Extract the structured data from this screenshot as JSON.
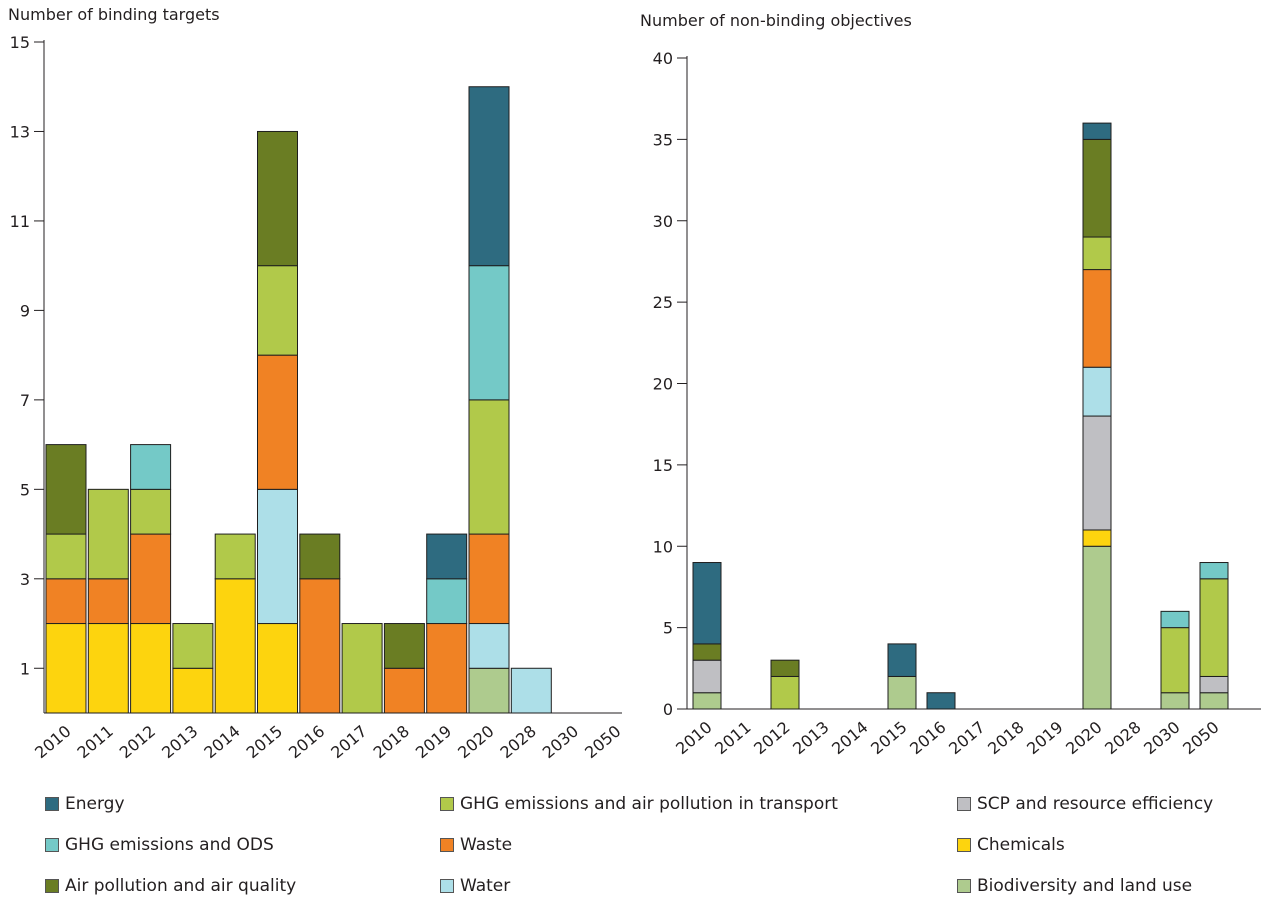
{
  "legend": [
    {
      "key": "energy",
      "label": "Energy"
    },
    {
      "key": "ghg_ods",
      "label": "GHG emissions and ODS"
    },
    {
      "key": "air",
      "label": "Air pollution and air quality"
    },
    {
      "key": "transport",
      "label": "GHG emissions and air pollution in transport"
    },
    {
      "key": "waste",
      "label": "Waste"
    },
    {
      "key": "water",
      "label": "Water"
    },
    {
      "key": "scp",
      "label": "SCP and resource efficiency"
    },
    {
      "key": "chemicals",
      "label": "Chemicals"
    },
    {
      "key": "biodiversity",
      "label": "Biodiversity and land use"
    }
  ],
  "colors": {
    "energy": "#2e6b80",
    "ghg_ods": "#74c9c7",
    "air": "#6a7d23",
    "transport": "#b1c94a",
    "waste": "#f08224",
    "water": "#addfe8",
    "scp": "#bfbfc3",
    "chemicals": "#fdd40e",
    "biodiversity": "#aecb8e"
  },
  "chart_data": [
    {
      "type": "bar",
      "stacked": true,
      "title": "Number of binding targets",
      "xlabel": "",
      "ylabel": "Number of binding targets",
      "categories": [
        "2010",
        "2011",
        "2012",
        "2013",
        "2014",
        "2015",
        "2016",
        "2017",
        "2018",
        "2019",
        "2020",
        "2028",
        "2030",
        "2050"
      ],
      "ylim": [
        0,
        15
      ],
      "yticks": [
        1,
        3,
        5,
        7,
        9,
        11,
        13,
        15
      ],
      "stack_order": [
        "biodiversity",
        "chemicals",
        "scp",
        "water",
        "waste",
        "transport",
        "ghg_ods",
        "air",
        "energy"
      ],
      "series": [
        {
          "key": "biodiversity",
          "name": "Biodiversity and land use",
          "values": [
            0,
            0,
            0,
            0,
            0,
            0,
            0,
            0,
            0,
            0,
            1,
            0,
            0,
            0
          ]
        },
        {
          "key": "chemicals",
          "name": "Chemicals",
          "values": [
            2,
            2,
            2,
            1,
            3,
            2,
            0,
            0,
            0,
            0,
            0,
            0,
            0,
            0
          ]
        },
        {
          "key": "scp",
          "name": "SCP and resource efficiency",
          "values": [
            0,
            0,
            0,
            0,
            0,
            0,
            0,
            0,
            0,
            0,
            0,
            0,
            0,
            0
          ]
        },
        {
          "key": "water",
          "name": "Water",
          "values": [
            0,
            0,
            0,
            0,
            0,
            3,
            0,
            0,
            0,
            0,
            1,
            1,
            0,
            0
          ]
        },
        {
          "key": "waste",
          "name": "Waste",
          "values": [
            1,
            1,
            2,
            0,
            0,
            3,
            3,
            0,
            1,
            2,
            2,
            0,
            0,
            0
          ]
        },
        {
          "key": "transport",
          "name": "GHG emissions and air pollution in transport",
          "values": [
            1,
            2,
            1,
            1,
            1,
            2,
            0,
            2,
            0,
            0,
            3,
            0,
            0,
            0
          ]
        },
        {
          "key": "ghg_ods",
          "name": "GHG emissions and ODS",
          "values": [
            0,
            0,
            1,
            0,
            0,
            0,
            0,
            0,
            0,
            1,
            3,
            0,
            0,
            0
          ]
        },
        {
          "key": "air",
          "name": "Air pollution and air quality",
          "values": [
            2,
            0,
            0,
            0,
            0,
            3,
            1,
            0,
            1,
            0,
            0,
            0,
            0,
            0
          ]
        },
        {
          "key": "energy",
          "name": "Energy",
          "values": [
            0,
            0,
            0,
            0,
            0,
            0,
            0,
            0,
            0,
            1,
            4,
            0,
            0,
            0
          ]
        }
      ]
    },
    {
      "type": "bar",
      "stacked": true,
      "title": "Number of non-binding objectives",
      "xlabel": "",
      "ylabel": "Number of non-binding objectives",
      "categories": [
        "2010",
        "2011",
        "2012",
        "2013",
        "2014",
        "2015",
        "2016",
        "2017",
        "2018",
        "2019",
        "2020",
        "2028",
        "2030",
        "2050"
      ],
      "ylim": [
        0,
        40
      ],
      "yticks": [
        0,
        5,
        10,
        15,
        20,
        25,
        30,
        35,
        40
      ],
      "stack_order": [
        "biodiversity",
        "chemicals",
        "scp",
        "water",
        "waste",
        "transport",
        "ghg_ods",
        "air",
        "energy"
      ],
      "series": [
        {
          "key": "biodiversity",
          "name": "Biodiversity and land use",
          "values": [
            1,
            0,
            0,
            0,
            0,
            2,
            0,
            0,
            0,
            0,
            10,
            0,
            1,
            1
          ]
        },
        {
          "key": "chemicals",
          "name": "Chemicals",
          "values": [
            0,
            0,
            0,
            0,
            0,
            0,
            0,
            0,
            0,
            0,
            1,
            0,
            0,
            0
          ]
        },
        {
          "key": "scp",
          "name": "SCP and resource efficiency",
          "values": [
            2,
            0,
            0,
            0,
            0,
            0,
            0,
            0,
            0,
            0,
            7,
            0,
            0,
            1
          ]
        },
        {
          "key": "water",
          "name": "Water",
          "values": [
            0,
            0,
            0,
            0,
            0,
            0,
            0,
            0,
            0,
            0,
            3,
            0,
            0,
            0
          ]
        },
        {
          "key": "waste",
          "name": "Waste",
          "values": [
            0,
            0,
            0,
            0,
            0,
            0,
            0,
            0,
            0,
            0,
            6,
            0,
            0,
            0
          ]
        },
        {
          "key": "transport",
          "name": "GHG emissions and air pollution in transport",
          "values": [
            0,
            0,
            2,
            0,
            0,
            0,
            0,
            0,
            0,
            0,
            2,
            0,
            4,
            6
          ]
        },
        {
          "key": "ghg_ods",
          "name": "GHG emissions and ODS",
          "values": [
            0,
            0,
            0,
            0,
            0,
            0,
            0,
            0,
            0,
            0,
            0,
            0,
            1,
            1
          ]
        },
        {
          "key": "air",
          "name": "Air pollution and air quality",
          "values": [
            1,
            0,
            1,
            0,
            0,
            0,
            0,
            0,
            0,
            0,
            6,
            0,
            0,
            0
          ]
        },
        {
          "key": "energy",
          "name": "Energy",
          "values": [
            5,
            0,
            0,
            0,
            0,
            2,
            1,
            0,
            0,
            0,
            1,
            0,
            0,
            0
          ]
        }
      ]
    }
  ]
}
